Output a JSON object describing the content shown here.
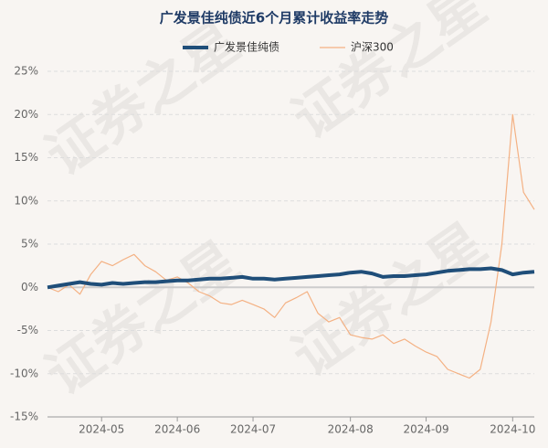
{
  "chart_data": {
    "type": "line",
    "title": "广发景佳纯债近6个月累计收益率走势",
    "watermark": "证券之星",
    "categories": [
      null,
      null,
      null,
      null,
      null,
      "2024-05",
      null,
      null,
      null,
      null,
      null,
      null,
      "2024-06",
      null,
      null,
      null,
      null,
      null,
      null,
      "2024-07",
      null,
      null,
      null,
      null,
      null,
      null,
      null,
      null,
      "2024-08",
      null,
      null,
      null,
      null,
      null,
      null,
      "2024-09",
      null,
      null,
      null,
      null,
      null,
      null,
      null,
      "2024-10",
      null,
      null
    ],
    "series": [
      {
        "name": "广发景佳纯债",
        "color": "#1f4e79",
        "width": 4,
        "values": [
          0,
          0.2,
          0.4,
          0.6,
          0.4,
          0.3,
          0.5,
          0.4,
          0.5,
          0.6,
          0.6,
          0.7,
          0.8,
          0.8,
          0.9,
          1.0,
          1.0,
          1.1,
          1.2,
          1.0,
          1.0,
          0.9,
          1.0,
          1.1,
          1.2,
          1.3,
          1.4,
          1.5,
          1.7,
          1.8,
          1.6,
          1.2,
          1.3,
          1.3,
          1.4,
          1.5,
          1.7,
          1.9,
          2.0,
          2.1,
          2.1,
          2.2,
          2.0,
          1.5,
          1.7,
          1.8
        ]
      },
      {
        "name": "沪深300",
        "color": "#f4b183",
        "width": 1.2,
        "values": [
          0,
          -0.5,
          0.3,
          -0.8,
          1.5,
          3,
          2.5,
          3.2,
          3.8,
          2.5,
          1.8,
          0.8,
          1.2,
          0.5,
          -0.5,
          -1,
          -1.8,
          -2,
          -1.5,
          -2,
          -2.5,
          -3.5,
          -1.8,
          -1.2,
          -0.5,
          -3,
          -4,
          -3.5,
          -5.5,
          -5.8,
          -6,
          -5.5,
          -6.5,
          -6,
          -6.8,
          -7.5,
          -8,
          -9.5,
          -10,
          -10.5,
          -9.5,
          -4,
          5,
          20,
          11,
          9
        ]
      }
    ],
    "ylim": [
      -15,
      25
    ],
    "yticks": [
      {
        "value": -15,
        "label": "-15%"
      },
      {
        "value": -10,
        "label": "-10%"
      },
      {
        "value": -5,
        "label": "-5%"
      },
      {
        "value": 0,
        "label": "0%"
      },
      {
        "value": 5,
        "label": "5%"
      },
      {
        "value": 10,
        "label": "10%"
      },
      {
        "value": 15,
        "label": "15%"
      },
      {
        "value": 20,
        "label": "20%"
      },
      {
        "value": 25,
        "label": "25%"
      }
    ],
    "grid": true
  }
}
